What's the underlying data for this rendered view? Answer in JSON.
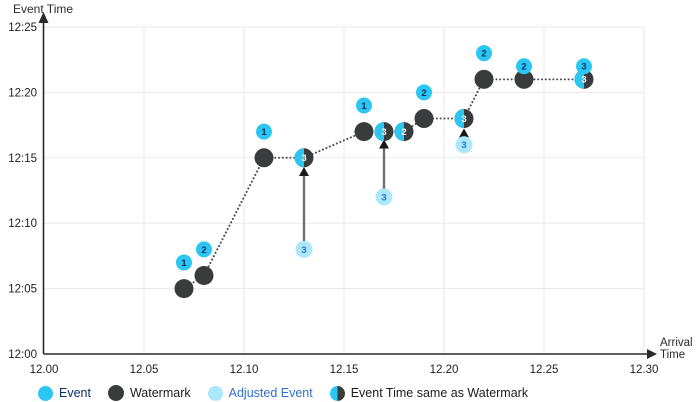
{
  "titles": {
    "y_axis": "Event Time",
    "x_axis": "Arrival Time"
  },
  "colors": {
    "event": "#2bc7f2",
    "adjusted_event": "#abe8fb",
    "watermark": "#3a3b3d",
    "grid": "#eaeaea",
    "axis": "#2a2a2a",
    "dotted_line": "#4d4d4d",
    "arrow_line": "#6e6e6e",
    "arrow_head": "#1a1a1a",
    "tick_text": "#1f1f1f",
    "number_navy": "#0a3166",
    "number_blue": "#2f6fd2",
    "number_white": "#ffffff",
    "legend_dark_text": "#1c1c1c"
  },
  "legend": [
    {
      "id": "event",
      "label": "Event",
      "swatch": "event",
      "text_color": "#0a3166",
      "size": 15
    },
    {
      "id": "watermark",
      "label": "Watermark",
      "swatch": "watermark",
      "text_color": "#1c1c1c",
      "size": 16
    },
    {
      "id": "adjusted-event",
      "label": "Adjusted Event",
      "swatch": "adjusted_event",
      "text_color": "#2f6fd2",
      "size": 15
    },
    {
      "id": "same-as-watermark",
      "label": "Event Time same as Watermark",
      "swatch": "half",
      "text_color": "#1c1c1c",
      "size": 15
    }
  ],
  "chart_data": {
    "type": "scatter",
    "title": "",
    "xlabel": "Arrival Time",
    "ylabel": "Event Time",
    "grid": true,
    "xlim": [
      12.0,
      12.3
    ],
    "ylim_minutes_after_1200": [
      0,
      25
    ],
    "x_ticks": [
      {
        "value": 12.0,
        "label": "12.00"
      },
      {
        "value": 12.05,
        "label": "12.05"
      },
      {
        "value": 12.1,
        "label": "12.10"
      },
      {
        "value": 12.15,
        "label": "12.15"
      },
      {
        "value": 12.2,
        "label": "12.20"
      },
      {
        "value": 12.25,
        "label": "12.25"
      },
      {
        "value": 12.3,
        "label": "12.30"
      }
    ],
    "y_ticks": [
      {
        "minutes": 0,
        "label": "12:00"
      },
      {
        "minutes": 5,
        "label": "12:05"
      },
      {
        "minutes": 10,
        "label": "12:10"
      },
      {
        "minutes": 15,
        "label": "12:15"
      },
      {
        "minutes": 20,
        "label": "12:20"
      },
      {
        "minutes": 25,
        "label": "12:25"
      }
    ],
    "series": {
      "events": [
        {
          "label": "1",
          "arrival": 12.07,
          "event_time": "12:07",
          "minutes": 7
        },
        {
          "label": "2",
          "arrival": 12.08,
          "event_time": "12:08",
          "minutes": 8
        },
        {
          "label": "1",
          "arrival": 12.11,
          "event_time": "12:17",
          "minutes": 17
        },
        {
          "label": "1",
          "arrival": 12.16,
          "event_time": "12:19",
          "minutes": 19
        },
        {
          "label": "2",
          "arrival": 12.19,
          "event_time": "12:20",
          "minutes": 20
        },
        {
          "label": "2",
          "arrival": 12.22,
          "event_time": "12:23",
          "minutes": 23
        },
        {
          "label": "2",
          "arrival": 12.24,
          "event_time": "12:22",
          "minutes": 22
        },
        {
          "label": "3",
          "arrival": 12.27,
          "event_time": "12:22",
          "minutes": 22
        }
      ],
      "watermarks": [
        {
          "arrival": 12.07,
          "watermark_time": "12:05",
          "minutes": 5
        },
        {
          "arrival": 12.08,
          "watermark_time": "12:06",
          "minutes": 6
        },
        {
          "arrival": 12.11,
          "watermark_time": "12:15",
          "minutes": 15
        },
        {
          "arrival": 12.16,
          "watermark_time": "12:17",
          "minutes": 17
        },
        {
          "arrival": 12.19,
          "watermark_time": "12:18",
          "minutes": 18
        },
        {
          "arrival": 12.22,
          "watermark_time": "12:21",
          "minutes": 21
        },
        {
          "arrival": 12.24,
          "watermark_time": "12:21",
          "minutes": 21
        }
      ],
      "same_as_watermark": [
        {
          "label": "3",
          "arrival": 12.13,
          "time": "12:15",
          "minutes": 15
        },
        {
          "label": "3",
          "arrival": 12.17,
          "time": "12:17",
          "minutes": 17
        },
        {
          "label": "2",
          "arrival": 12.18,
          "time": "12:17",
          "minutes": 17
        },
        {
          "label": "3",
          "arrival": 12.21,
          "time": "12:18",
          "minutes": 18
        },
        {
          "label": "3",
          "arrival": 12.27,
          "time": "12:21",
          "minutes": 21
        }
      ],
      "adjusted_events": [
        {
          "label": "3",
          "arrival": 12.13,
          "original_time": "12:08",
          "minutes": 8
        },
        {
          "label": "3",
          "arrival": 12.17,
          "original_time": "12:12",
          "minutes": 12
        },
        {
          "label": "3",
          "arrival": 12.21,
          "original_time": "12:16",
          "minutes": 16
        }
      ],
      "watermark_line": [
        {
          "arrival": 12.07,
          "minutes": 5
        },
        {
          "arrival": 12.08,
          "minutes": 6
        },
        {
          "arrival": 12.11,
          "minutes": 15
        },
        {
          "arrival": 12.13,
          "minutes": 15
        },
        {
          "arrival": 12.16,
          "minutes": 17
        },
        {
          "arrival": 12.17,
          "minutes": 17
        },
        {
          "arrival": 12.18,
          "minutes": 17
        },
        {
          "arrival": 12.19,
          "minutes": 18
        },
        {
          "arrival": 12.21,
          "minutes": 18
        },
        {
          "arrival": 12.22,
          "minutes": 21
        },
        {
          "arrival": 12.24,
          "minutes": 21
        },
        {
          "arrival": 12.27,
          "minutes": 21
        }
      ],
      "adjust_arrows": [
        {
          "arrival": 12.13,
          "from_minutes": 8.3,
          "to_minutes": 14.3
        },
        {
          "arrival": 12.17,
          "from_minutes": 12.6,
          "to_minutes": 16.4
        },
        {
          "arrival": 12.21,
          "from_minutes": 16.55,
          "to_minutes": 17.25
        },
        {
          "arrival": 12.268,
          "from_minutes": 20.6,
          "to_minutes": 21.7
        }
      ]
    },
    "legend_entries": [
      "Event",
      "Watermark",
      "Adjusted Event",
      "Event Time same as Watermark"
    ],
    "legend_position": "bottom"
  }
}
